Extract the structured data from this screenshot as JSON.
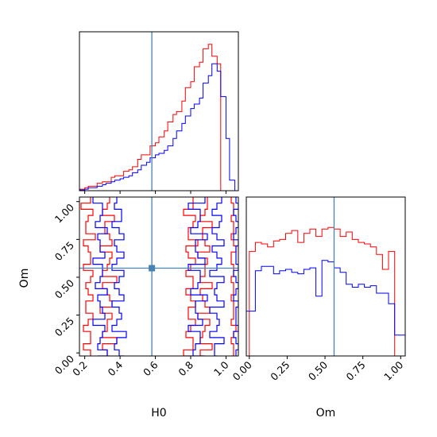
{
  "chart_data": {
    "type": "corner",
    "parameters": [
      "H0",
      "Om"
    ],
    "truth": {
      "H0": 0.58,
      "Om": 0.56
    },
    "truth_color": "#4682b4",
    "series": [
      {
        "color": "#ff0000"
      },
      {
        "color": "#0000ff"
      }
    ],
    "axes": {
      "H0": {
        "label": "H0",
        "range": [
          0.17,
          1.07
        ],
        "ticks": [
          "0.2",
          "0.4",
          "0.6",
          "0.8",
          "1.0"
        ],
        "tick_values": [
          0.2,
          0.4,
          0.6,
          0.8,
          1.0
        ]
      },
      "Om": {
        "label": "Om",
        "range": [
          -0.02,
          1.03
        ],
        "ticks": [
          "0.00",
          "0.25",
          "0.50",
          "0.75",
          "1.00"
        ],
        "tick_values": [
          0.0,
          0.25,
          0.5,
          0.75,
          1.0
        ]
      }
    },
    "hist_H0": {
      "edges": [
        0.17,
        0.2,
        0.22,
        0.25,
        0.27,
        0.3,
        0.32,
        0.35,
        0.37,
        0.4,
        0.42,
        0.45,
        0.47,
        0.5,
        0.52,
        0.55,
        0.57,
        0.6,
        0.62,
        0.65,
        0.67,
        0.7,
        0.72,
        0.75,
        0.77,
        0.8,
        0.82,
        0.85,
        0.87,
        0.9,
        0.92,
        0.95,
        0.97,
        1.0,
        1.02,
        1.05,
        1.07
      ],
      "red": [
        0.01,
        0.02,
        0.03,
        0.03,
        0.05,
        0.06,
        0.06,
        0.09,
        0.1,
        0.1,
        0.13,
        0.14,
        0.16,
        0.21,
        0.24,
        0.24,
        0.3,
        0.32,
        0.36,
        0.4,
        0.46,
        0.51,
        0.53,
        0.6,
        0.69,
        0.73,
        0.83,
        0.86,
        0.95,
        0.98,
        0.9,
        0.85,
        0.0,
        0.0,
        0.0,
        0.0
      ],
      "blue": [
        0.005,
        0.01,
        0.02,
        0.02,
        0.03,
        0.04,
        0.05,
        0.06,
        0.07,
        0.08,
        0.09,
        0.1,
        0.12,
        0.14,
        0.17,
        0.19,
        0.22,
        0.24,
        0.25,
        0.27,
        0.3,
        0.35,
        0.4,
        0.45,
        0.5,
        0.55,
        0.58,
        0.62,
        0.72,
        0.77,
        0.85,
        0.8,
        0.63,
        0.35,
        0.07,
        0.0
      ]
    },
    "hist_Om": {
      "edges": [
        -0.02,
        0.0,
        0.04,
        0.08,
        0.12,
        0.16,
        0.2,
        0.24,
        0.28,
        0.32,
        0.36,
        0.4,
        0.44,
        0.48,
        0.52,
        0.56,
        0.6,
        0.64,
        0.68,
        0.72,
        0.76,
        0.8,
        0.84,
        0.88,
        0.92,
        0.96,
        1.0,
        1.03
      ],
      "red": [
        0.0,
        0.7,
        0.76,
        0.75,
        0.73,
        0.77,
        0.78,
        0.82,
        0.84,
        0.76,
        0.82,
        0.85,
        0.8,
        0.85,
        0.86,
        0.85,
        0.8,
        0.83,
        0.78,
        0.76,
        0.75,
        0.73,
        0.68,
        0.58,
        0.7,
        0.0,
        0.0
      ],
      "blue": [
        0.3,
        0.3,
        0.57,
        0.6,
        0.6,
        0.55,
        0.57,
        0.58,
        0.56,
        0.55,
        0.58,
        0.59,
        0.4,
        0.64,
        0.63,
        0.59,
        0.56,
        0.48,
        0.46,
        0.48,
        0.46,
        0.47,
        0.42,
        0.42,
        0.35,
        0.14,
        0.14
      ]
    }
  }
}
